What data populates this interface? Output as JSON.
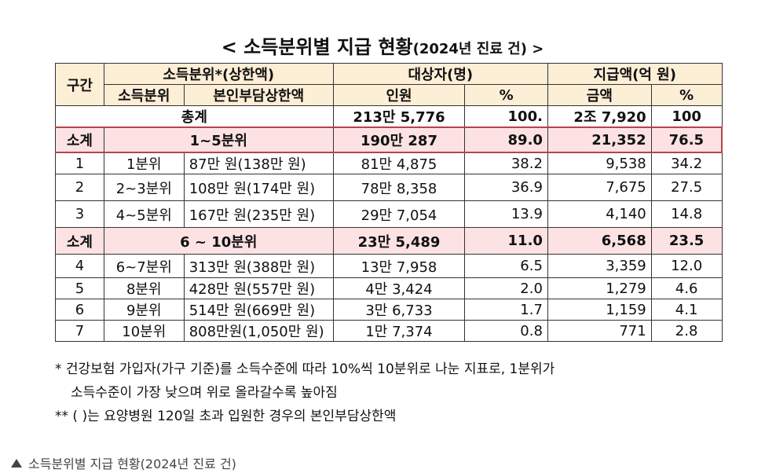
{
  "title": "< 소득분위별 지급 현황",
  "title_sub": "(2024년 진료 건) >",
  "header": {
    "col_section": "구간",
    "grp_income": "소득분위*(상한액)",
    "grp_target": "대상자(명)",
    "grp_amount": "지급액(억 원)",
    "sub_quantile": "소득분위",
    "sub_cap": "본인부담상한액",
    "sub_people": "인원",
    "sub_pct1": "%",
    "sub_money": "금액",
    "sub_pct2": "%"
  },
  "total": {
    "label": "총계",
    "people": "213만 5,776",
    "pct1": "100.",
    "money": "2조 7,920",
    "pct2": "100"
  },
  "subtotal1": {
    "section": "소계",
    "label": "1~5분위",
    "people": "190만 287",
    "pct1": "89.0",
    "money": "21,352",
    "pct2": "76.5"
  },
  "rows1": [
    {
      "sec": "1",
      "q": "1분위",
      "cap": "87만 원(138만 원)",
      "people": "81만 4,875",
      "pct1": "38.2",
      "money": "9,538",
      "pct2": "34.2"
    },
    {
      "sec": "2",
      "q": "2~3분위",
      "cap": "108만 원(174만 원)",
      "people": "78만 8,358",
      "pct1": "36.9",
      "money": "7,675",
      "pct2": "27.5"
    },
    {
      "sec": "3",
      "q": "4~5분위",
      "cap": "167만 원(235만 원)",
      "people": "29만 7,054",
      "pct1": "13.9",
      "money": "4,140",
      "pct2": "14.8"
    }
  ],
  "subtotal2": {
    "section": "소계",
    "label": "6 ~ 10분위",
    "people": "23만 5,489",
    "pct1": "11.0",
    "money": "6,568",
    "pct2": "23.5"
  },
  "rows2": [
    {
      "sec": "4",
      "q": "6~7분위",
      "cap": "313만 원(388만 원)",
      "people": "13만 7,958",
      "pct1": "6.5",
      "money": "3,359",
      "pct2": "12.0"
    },
    {
      "sec": "5",
      "q": "8분위",
      "cap": "428만 원(557만 원)",
      "people": "4만 3,424",
      "pct1": "2.0",
      "money": "1,279",
      "pct2": "4.6"
    },
    {
      "sec": "6",
      "q": "9분위",
      "cap": "514만 원(669만 원)",
      "people": "3만 6,733",
      "pct1": "1.7",
      "money": "1,159",
      "pct2": "4.1"
    },
    {
      "sec": "7",
      "q": "10분위",
      "cap": "808만원(1,050만 원)",
      "people": "1만 7,374",
      "pct1": "0.8",
      "money": "771",
      "pct2": "2.8"
    }
  ],
  "notes": {
    "n1": "* 건강보험 가입자(가구 기준)를 소득수준에 따라 10%씩 10분위로 나눈 지표로, 1분위가",
    "n1b": "소득수준이 가장 낮으며 위로 올라갈수록 높아짐",
    "n2": "** (   )는 요양병원 120일 초과 입원한 경우의 본인부담상한액"
  },
  "caption": "소득분위별 지급 현황(2024년 진료 건)"
}
